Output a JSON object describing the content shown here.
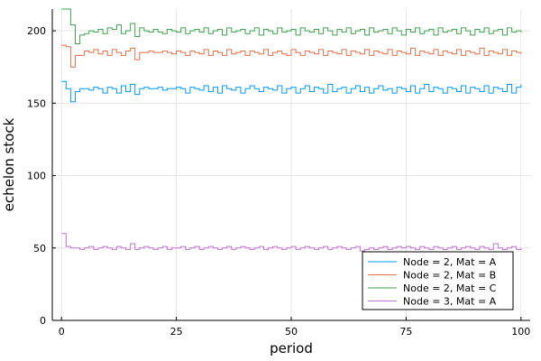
{
  "chart_data": {
    "type": "line",
    "step": true,
    "title": "",
    "xlabel": "period",
    "ylabel": "echelon stock",
    "xlim": [
      -2,
      102
    ],
    "ylim": [
      0,
      215
    ],
    "xticks": [
      0,
      25,
      50,
      75,
      100
    ],
    "yticks": [
      0,
      50,
      100,
      150,
      200
    ],
    "grid": true,
    "legend_position": "bottom-right",
    "series": [
      {
        "name": "Node = 2, Mat = A",
        "color": "#009AFA",
        "x": [
          0,
          1,
          2,
          3,
          4,
          5,
          6,
          7,
          8,
          9,
          10,
          11,
          12,
          13,
          14,
          15,
          16,
          17,
          18,
          19,
          20,
          21,
          22,
          23,
          24,
          25,
          26,
          27,
          28,
          29,
          30,
          31,
          32,
          33,
          34,
          35,
          36,
          37,
          38,
          39,
          40,
          41,
          42,
          43,
          44,
          45,
          46,
          47,
          48,
          49,
          50,
          51,
          52,
          53,
          54,
          55,
          56,
          57,
          58,
          59,
          60,
          61,
          62,
          63,
          64,
          65,
          66,
          67,
          68,
          69,
          70,
          71,
          72,
          73,
          74,
          75,
          76,
          77,
          78,
          79,
          80,
          81,
          82,
          83,
          84,
          85,
          86,
          87,
          88,
          89,
          90,
          91,
          92,
          93,
          94,
          95,
          96,
          97,
          98,
          99,
          100
        ],
        "values": [
          165,
          160,
          151,
          158,
          160,
          160,
          159,
          161,
          160,
          157,
          161,
          160,
          157,
          162,
          158,
          163,
          156,
          160,
          161,
          160,
          160,
          161,
          159,
          160,
          160,
          161,
          160,
          157,
          161,
          160,
          159,
          162,
          158,
          161,
          157,
          162,
          160,
          159,
          161,
          157,
          160,
          162,
          160,
          158,
          161,
          160,
          159,
          162,
          157,
          160,
          161,
          157,
          160,
          162,
          158,
          161,
          160,
          157,
          163,
          158,
          160,
          161,
          157,
          160,
          162,
          158,
          161,
          157,
          160,
          162,
          159,
          160,
          157,
          161,
          160,
          158,
          162,
          157,
          160,
          163,
          158,
          161,
          160,
          157,
          161,
          160,
          158,
          162,
          157,
          161,
          160,
          158,
          162,
          157,
          161,
          160,
          158,
          163,
          157,
          161,
          163
        ]
      },
      {
        "name": "Node = 2, Mat = B",
        "color": "#E36F47",
        "x": [
          0,
          1,
          2,
          3,
          4,
          5,
          6,
          7,
          8,
          9,
          10,
          11,
          12,
          13,
          14,
          15,
          16,
          17,
          18,
          19,
          20,
          21,
          22,
          23,
          24,
          25,
          26,
          27,
          28,
          29,
          30,
          31,
          32,
          33,
          34,
          35,
          36,
          37,
          38,
          39,
          40,
          41,
          42,
          43,
          44,
          45,
          46,
          47,
          48,
          49,
          50,
          51,
          52,
          53,
          54,
          55,
          56,
          57,
          58,
          59,
          60,
          61,
          62,
          63,
          64,
          65,
          66,
          67,
          68,
          69,
          70,
          71,
          72,
          73,
          74,
          75,
          76,
          77,
          78,
          79,
          80,
          81,
          82,
          83,
          84,
          85,
          86,
          87,
          88,
          89,
          90,
          91,
          92,
          93,
          94,
          95,
          96,
          97,
          98,
          99,
          100
        ],
        "values": [
          190,
          189,
          175,
          183,
          183,
          186,
          185,
          187,
          184,
          186,
          183,
          187,
          185,
          183,
          186,
          188,
          180,
          185,
          185,
          186,
          185,
          185,
          186,
          185,
          184,
          186,
          185,
          183,
          186,
          185,
          184,
          187,
          183,
          186,
          185,
          183,
          187,
          184,
          185,
          186,
          183,
          186,
          185,
          184,
          187,
          183,
          185,
          186,
          184,
          183,
          187,
          185,
          183,
          186,
          185,
          184,
          187,
          183,
          186,
          185,
          184,
          187,
          183,
          186,
          185,
          184,
          187,
          183,
          186,
          185,
          184,
          187,
          183,
          186,
          185,
          184,
          188,
          183,
          186,
          185,
          184,
          187,
          183,
          186,
          185,
          184,
          187,
          183,
          186,
          185,
          184,
          188,
          183,
          186,
          185,
          184,
          187,
          183,
          186,
          185,
          184
        ]
      },
      {
        "name": "Node = 2, Mat = C",
        "color": "#3DA44D",
        "x": [
          0,
          1,
          2,
          3,
          4,
          5,
          6,
          7,
          8,
          9,
          10,
          11,
          12,
          13,
          14,
          15,
          16,
          17,
          18,
          19,
          20,
          21,
          22,
          23,
          24,
          25,
          26,
          27,
          28,
          29,
          30,
          31,
          32,
          33,
          34,
          35,
          36,
          37,
          38,
          39,
          40,
          41,
          42,
          43,
          44,
          45,
          46,
          47,
          48,
          49,
          50,
          51,
          52,
          53,
          54,
          55,
          56,
          57,
          58,
          59,
          60,
          61,
          62,
          63,
          64,
          65,
          66,
          67,
          68,
          69,
          70,
          71,
          72,
          73,
          74,
          75,
          76,
          77,
          78,
          79,
          80,
          81,
          82,
          83,
          84,
          85,
          86,
          87,
          88,
          89,
          90,
          91,
          92,
          93,
          94,
          95,
          96,
          97,
          98,
          99,
          100
        ],
        "values": [
          215,
          215,
          204,
          191,
          197,
          198,
          200,
          199,
          201,
          198,
          202,
          201,
          204,
          198,
          200,
          205,
          196,
          202,
          200,
          199,
          201,
          199,
          198,
          201,
          200,
          199,
          202,
          198,
          200,
          201,
          199,
          202,
          198,
          200,
          201,
          197,
          202,
          199,
          200,
          201,
          198,
          200,
          202,
          197,
          201,
          200,
          198,
          202,
          199,
          200,
          201,
          197,
          202,
          200,
          199,
          201,
          198,
          202,
          200,
          197,
          201,
          199,
          202,
          198,
          200,
          201,
          197,
          202,
          199,
          200,
          201,
          198,
          202,
          200,
          197,
          201,
          199,
          202,
          198,
          200,
          201,
          197,
          202,
          199,
          200,
          201,
          198,
          202,
          200,
          197,
          201,
          199,
          202,
          198,
          200,
          201,
          197,
          202,
          199,
          200,
          199
        ]
      },
      {
        "name": "Node = 3, Mat = A",
        "color": "#C271D2",
        "x": [
          0,
          1,
          2,
          3,
          4,
          5,
          6,
          7,
          8,
          9,
          10,
          11,
          12,
          13,
          14,
          15,
          16,
          17,
          18,
          19,
          20,
          21,
          22,
          23,
          24,
          25,
          26,
          27,
          28,
          29,
          30,
          31,
          32,
          33,
          34,
          35,
          36,
          37,
          38,
          39,
          40,
          41,
          42,
          43,
          44,
          45,
          46,
          47,
          48,
          49,
          50,
          51,
          52,
          53,
          54,
          55,
          56,
          57,
          58,
          59,
          60,
          61,
          62,
          63,
          64,
          65,
          66,
          67,
          68,
          69,
          70,
          71,
          72,
          73,
          74,
          75,
          76,
          77,
          78,
          79,
          80,
          81,
          82,
          83,
          84,
          85,
          86,
          87,
          88,
          89,
          90,
          91,
          92,
          93,
          94,
          95,
          96,
          97,
          98,
          99,
          100
        ],
        "values": [
          60,
          51,
          50,
          50,
          49,
          50,
          51,
          49,
          50,
          51,
          50,
          49,
          51,
          50,
          49,
          53,
          49,
          50,
          51,
          50,
          49,
          50,
          51,
          49,
          50,
          50,
          51,
          49,
          50,
          51,
          49,
          50,
          51,
          50,
          49,
          50,
          51,
          49,
          50,
          51,
          50,
          49,
          50,
          51,
          49,
          50,
          51,
          50,
          49,
          50,
          51,
          49,
          50,
          51,
          50,
          49,
          50,
          51,
          49,
          50,
          51,
          50,
          49,
          50,
          51,
          48,
          49,
          50,
          49,
          50,
          51,
          49,
          50,
          51,
          50,
          51,
          50,
          49,
          51,
          50,
          49,
          51,
          50,
          49,
          50,
          51,
          49,
          50,
          51,
          50,
          49,
          51,
          50,
          49,
          53,
          50,
          49,
          50,
          51,
          49,
          50
        ]
      }
    ]
  }
}
